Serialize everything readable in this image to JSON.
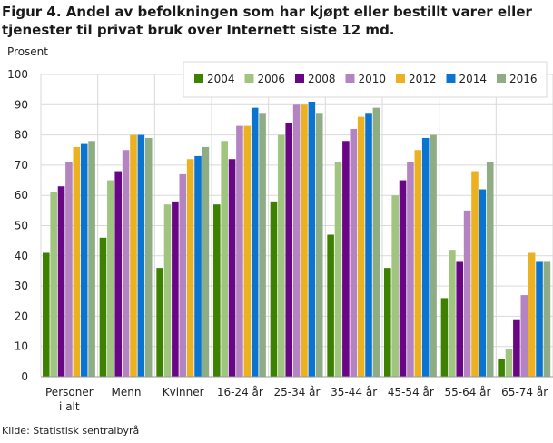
{
  "chart_data": {
    "type": "bar",
    "title": "Figur 4. Andel av befolkningen som har kjøpt eller bestillt varer eller tjenester til privat bruk over Internett siste 12 md.",
    "ylabel": "Prosent",
    "xlabel": "",
    "ylim": [
      0,
      100
    ],
    "yticks": [
      0,
      10,
      20,
      30,
      40,
      50,
      60,
      70,
      80,
      90,
      100
    ],
    "grid": true,
    "legend": "top-right",
    "categories": [
      [
        "Personer",
        "i alt"
      ],
      [
        "Menn"
      ],
      [
        "Kvinner"
      ],
      [
        "16-24 år"
      ],
      [
        "25-34 år"
      ],
      [
        "35-44 år"
      ],
      [
        "45-54 år"
      ],
      [
        "55-64 år"
      ],
      [
        "65-74 år"
      ]
    ],
    "series": [
      {
        "name": "2004",
        "color": "#3d8100",
        "values": [
          41,
          46,
          36,
          57,
          58,
          47,
          36,
          26,
          6
        ]
      },
      {
        "name": "2006",
        "color": "#9fc57e",
        "values": [
          61,
          65,
          57,
          78,
          80,
          71,
          60,
          42,
          9
        ]
      },
      {
        "name": "2008",
        "color": "#690685",
        "values": [
          63,
          68,
          58,
          72,
          84,
          78,
          65,
          38,
          19
        ]
      },
      {
        "name": "2010",
        "color": "#b483c2",
        "values": [
          71,
          75,
          67,
          83,
          90,
          82,
          71,
          55,
          27
        ]
      },
      {
        "name": "2012",
        "color": "#ecb120",
        "values": [
          76,
          80,
          72,
          83,
          90,
          86,
          75,
          68,
          41
        ]
      },
      {
        "name": "2014",
        "color": "#0b74d0",
        "values": [
          77,
          80,
          73,
          89,
          91,
          87,
          79,
          62,
          38
        ]
      },
      {
        "name": "2016",
        "color": "#8fad84",
        "values": [
          78,
          79,
          76,
          87,
          87,
          89,
          80,
          71,
          38
        ]
      }
    ],
    "source": "Kilde: Statistisk sentralbyrå"
  }
}
